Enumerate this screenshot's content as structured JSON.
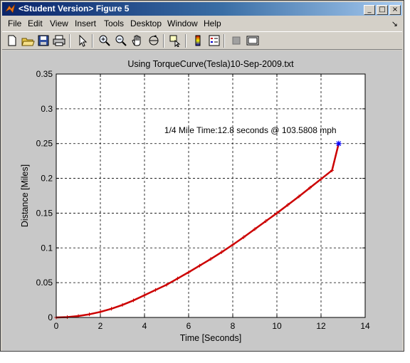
{
  "window": {
    "title": "<Student Version> Figure 5",
    "controls": {
      "minimize": "_",
      "maximize": "□",
      "close": "×"
    }
  },
  "menu": [
    "File",
    "Edit",
    "View",
    "Insert",
    "Tools",
    "Desktop",
    "Window",
    "Help"
  ],
  "toolbar": {
    "icons": [
      "new-figure-icon",
      "open-file-icon",
      "save-icon",
      "print-icon",
      "edit-plot-arrow-icon",
      "zoom-in-icon",
      "zoom-out-icon",
      "pan-hand-icon",
      "rotate-3d-icon",
      "data-cursor-icon",
      "colorbar-icon",
      "legend-icon",
      "hide-plot-tools-icon",
      "show-plot-tools-icon"
    ]
  },
  "colors": {
    "titlebar_start": "#0a246a",
    "titlebar_end": "#a6caf0",
    "curve": "#cc0000",
    "endpoint_marker": "#0000ff",
    "figure_background": "#c8c8c8"
  },
  "chart_data": {
    "type": "line",
    "title": "Using TorqueCurve(Tesla)10-Sep-2009.txt",
    "xlabel": "Time [Seconds]",
    "ylabel": "Distance [Miles]",
    "xlim": [
      0,
      14
    ],
    "ylim": [
      0,
      0.35
    ],
    "xticks": [
      "0",
      "2",
      "4",
      "6",
      "8",
      "10",
      "12",
      "14"
    ],
    "yticks": [
      "0",
      "0.05",
      "0.1",
      "0.15",
      "0.2",
      "0.25",
      "0.3",
      "0.35"
    ],
    "grid": true,
    "series": [
      {
        "x": [
          0,
          0.5,
          1,
          1.5,
          2,
          2.5,
          3,
          3.5,
          4,
          4.5,
          5,
          5.5,
          6,
          6.5,
          7,
          7.5,
          8,
          8.5,
          9,
          9.5,
          10,
          10.5,
          11,
          11.5,
          12,
          12.5,
          12.8
        ],
        "y": [
          0,
          0.0005,
          0.002,
          0.0045,
          0.008,
          0.0125,
          0.018,
          0.0245,
          0.032,
          0.0395,
          0.047,
          0.056,
          0.065,
          0.0745,
          0.084,
          0.094,
          0.1045,
          0.1155,
          0.127,
          0.1385,
          0.15,
          0.162,
          0.174,
          0.1865,
          0.199,
          0.2115,
          0.25
        ]
      }
    ],
    "endpoint": {
      "x": 12.8,
      "y": 0.25
    },
    "annotation": {
      "text": "1/4 Mile Time:12.8 seconds @ 103.5808 mph",
      "x": 4.9,
      "y": 0.265
    }
  }
}
